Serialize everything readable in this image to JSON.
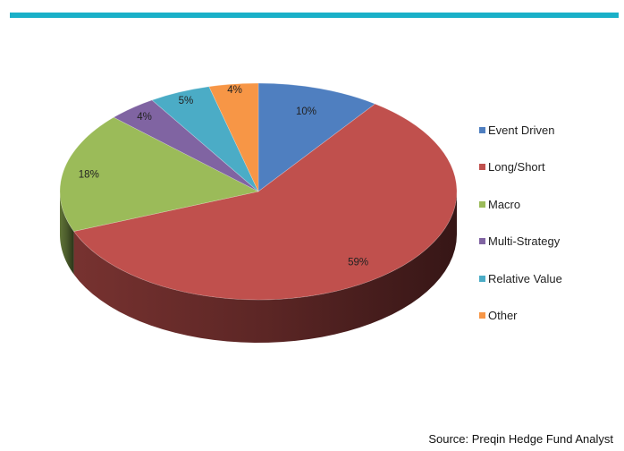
{
  "header": {
    "accent_color": "#1ab0c8"
  },
  "chart_data": {
    "type": "pie",
    "categories": [
      "Event Driven",
      "Long/Short",
      "Macro",
      "Multi-Strategy",
      "Relative Value",
      "Other"
    ],
    "values": [
      10,
      59,
      18,
      4,
      5,
      4
    ],
    "data_labels": [
      "10%",
      "59%",
      "18%",
      "4%",
      "5%",
      "4%"
    ],
    "colors": [
      "#4f7fc0",
      "#c0504d",
      "#9bbb59",
      "#8064a2",
      "#4bacc6",
      "#f79646"
    ],
    "three_d": true,
    "legend_position": "right"
  },
  "legend": {
    "items": [
      {
        "label": "Event Driven",
        "color": "#4f7fc0"
      },
      {
        "label": "Long/Short",
        "color": "#c0504d"
      },
      {
        "label": "Macro",
        "color": "#9bbb59"
      },
      {
        "label": "Multi-Strategy",
        "color": "#8064a2"
      },
      {
        "label": "Relative Value",
        "color": "#4bacc6"
      },
      {
        "label": "Other",
        "color": "#f79646"
      }
    ]
  },
  "footer": {
    "source": "Source: Preqin Hedge Fund Analyst"
  }
}
